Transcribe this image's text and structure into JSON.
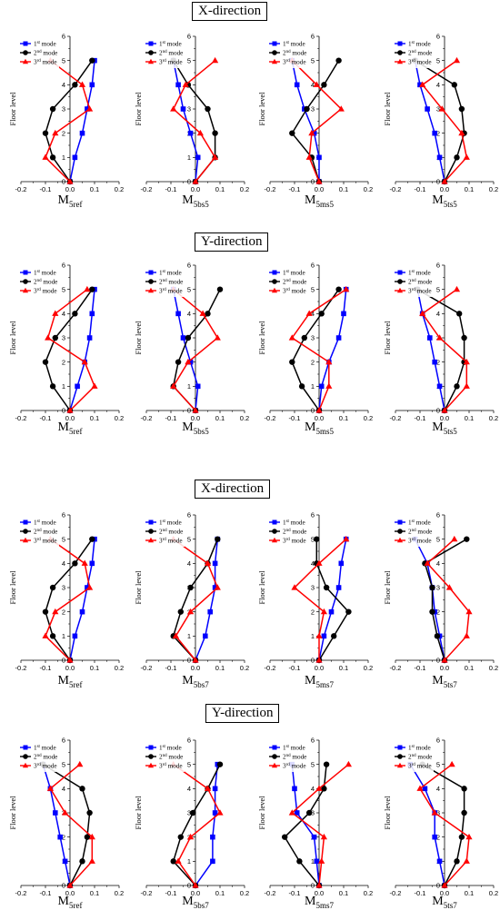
{
  "colors": {
    "mode1": "#0000ff",
    "mode2": "#000000",
    "mode3": "#ff0000"
  },
  "legend_labels": [
    {
      "base": "1",
      "sup": "st",
      "rest": " mode"
    },
    {
      "base": "2",
      "sup": "nd",
      "rest": " mode"
    },
    {
      "base": "3",
      "sup": "rd",
      "rest": " mode"
    }
  ],
  "y_axis_label": "Floor level",
  "x_tick_labels": [
    "-0.2",
    "-0.1",
    "0.0",
    "0.1",
    "0.2"
  ],
  "y_tick_labels": [
    "0",
    "1",
    "2",
    "3",
    "4",
    "5",
    "6"
  ],
  "groups": [
    {
      "title": "X-direction"
    },
    {
      "title": "Y-direction"
    },
    {
      "title": "X-direction"
    },
    {
      "title": "Y-direction"
    }
  ],
  "chart_data": [
    {
      "type": "line",
      "group": 0,
      "label_main": "M",
      "label_sub": "5ref",
      "xlim": [
        -0.2,
        0.2
      ],
      "ylim": [
        0,
        6
      ],
      "y": [
        0,
        1,
        2,
        3,
        4,
        5
      ],
      "series": [
        {
          "name": "1st mode",
          "values": [
            0,
            0.02,
            0.05,
            0.07,
            0.09,
            0.1
          ]
        },
        {
          "name": "2nd mode",
          "values": [
            0,
            -0.07,
            -0.1,
            -0.07,
            0.02,
            0.09
          ]
        },
        {
          "name": "3rd mode",
          "values": [
            0,
            -0.1,
            -0.06,
            0.08,
            0.05,
            -0.08
          ]
        }
      ]
    },
    {
      "type": "line",
      "group": 0,
      "label_main": "M",
      "label_sub": "5bs5",
      "xlim": [
        -0.2,
        0.2
      ],
      "ylim": [
        0,
        6
      ],
      "y": [
        0,
        1,
        2,
        3,
        4,
        5
      ],
      "series": [
        {
          "name": "1st mode",
          "values": [
            0,
            0.01,
            -0.02,
            -0.05,
            -0.07,
            -0.09
          ]
        },
        {
          "name": "2nd mode",
          "values": [
            0,
            0.08,
            0.08,
            0.05,
            -0.03,
            -0.09
          ]
        },
        {
          "name": "3rd mode",
          "values": [
            0,
            0.08,
            0.02,
            -0.09,
            -0.04,
            0.08
          ]
        }
      ]
    },
    {
      "type": "line",
      "group": 0,
      "label_main": "M",
      "label_sub": "5ms5",
      "xlim": [
        -0.2,
        0.2
      ],
      "ylim": [
        0,
        6
      ],
      "y": [
        0,
        1,
        2,
        3,
        4,
        5
      ],
      "series": [
        {
          "name": "1st mode",
          "values": [
            0,
            0.0,
            -0.02,
            -0.06,
            -0.09,
            -0.11
          ]
        },
        {
          "name": "2nd mode",
          "values": [
            0,
            -0.03,
            -0.11,
            -0.05,
            0.02,
            0.08
          ]
        },
        {
          "name": "3rd mode",
          "values": [
            0,
            -0.04,
            -0.03,
            0.09,
            -0.01,
            -0.11
          ]
        }
      ]
    },
    {
      "type": "line",
      "group": 0,
      "label_main": "M",
      "label_sub": "5ts5",
      "xlim": [
        -0.2,
        0.2
      ],
      "ylim": [
        0,
        6
      ],
      "y": [
        0,
        1,
        2,
        3,
        4,
        5
      ],
      "series": [
        {
          "name": "1st mode",
          "values": [
            0,
            -0.02,
            -0.04,
            -0.07,
            -0.1,
            -0.12
          ]
        },
        {
          "name": "2nd mode",
          "values": [
            0,
            0.05,
            0.08,
            0.07,
            0.04,
            -0.12
          ]
        },
        {
          "name": "3rd mode",
          "values": [
            0,
            0.09,
            0.07,
            -0.01,
            -0.09,
            0.05
          ]
        }
      ]
    },
    {
      "type": "line",
      "group": 1,
      "label_main": "M",
      "label_sub": "5ref",
      "xlim": [
        -0.2,
        0.2
      ],
      "ylim": [
        0,
        6
      ],
      "y": [
        0,
        1,
        2,
        3,
        4,
        5
      ],
      "series": [
        {
          "name": "1st mode",
          "values": [
            0,
            0.03,
            0.06,
            0.08,
            0.09,
            0.1
          ]
        },
        {
          "name": "2nd mode",
          "values": [
            0,
            -0.07,
            -0.1,
            -0.06,
            0.02,
            0.09
          ]
        },
        {
          "name": "3rd mode",
          "values": [
            0,
            0.1,
            0.06,
            -0.09,
            -0.06,
            0.07
          ]
        }
      ]
    },
    {
      "type": "line",
      "group": 1,
      "label_main": "M",
      "label_sub": "5bs5",
      "xlim": [
        -0.2,
        0.2
      ],
      "ylim": [
        0,
        6
      ],
      "y": [
        0,
        1,
        2,
        3,
        4,
        5
      ],
      "series": [
        {
          "name": "1st mode",
          "values": [
            0,
            0.01,
            -0.02,
            -0.05,
            -0.07,
            -0.09
          ]
        },
        {
          "name": "2nd mode",
          "values": [
            0,
            -0.09,
            -0.07,
            -0.03,
            0.05,
            0.1
          ]
        },
        {
          "name": "3rd mode",
          "values": [
            0,
            -0.09,
            -0.03,
            0.09,
            0.03,
            -0.09
          ]
        }
      ]
    },
    {
      "type": "line",
      "group": 1,
      "label_main": "M",
      "label_sub": "5ms5",
      "xlim": [
        -0.2,
        0.2
      ],
      "ylim": [
        0,
        6
      ],
      "y": [
        0,
        1,
        2,
        3,
        4,
        5
      ],
      "series": [
        {
          "name": "1st mode",
          "values": [
            0,
            0.01,
            0.04,
            0.08,
            0.1,
            0.11
          ]
        },
        {
          "name": "2nd mode",
          "values": [
            0,
            -0.07,
            -0.11,
            -0.06,
            0.01,
            0.08
          ]
        },
        {
          "name": "3rd mode",
          "values": [
            0,
            0.04,
            0.04,
            -0.11,
            -0.04,
            0.11
          ]
        }
      ]
    },
    {
      "type": "line",
      "group": 1,
      "label_main": "M",
      "label_sub": "5ts5",
      "xlim": [
        -0.2,
        0.2
      ],
      "ylim": [
        0,
        6
      ],
      "y": [
        0,
        1,
        2,
        3,
        4,
        5
      ],
      "series": [
        {
          "name": "1st mode",
          "values": [
            0,
            -0.02,
            -0.04,
            -0.06,
            -0.09,
            -0.11
          ]
        },
        {
          "name": "2nd mode",
          "values": [
            0,
            0.05,
            0.08,
            0.08,
            0.06,
            -0.11
          ]
        },
        {
          "name": "3rd mode",
          "values": [
            0,
            0.09,
            0.09,
            -0.02,
            -0.09,
            0.05
          ]
        }
      ]
    },
    {
      "type": "line",
      "group": 2,
      "label_main": "M",
      "label_sub": "5ref",
      "xlim": [
        -0.2,
        0.2
      ],
      "ylim": [
        0,
        6
      ],
      "y": [
        0,
        1,
        2,
        3,
        4,
        5
      ],
      "series": [
        {
          "name": "1st mode",
          "values": [
            0,
            0.02,
            0.05,
            0.07,
            0.09,
            0.1
          ]
        },
        {
          "name": "2nd mode",
          "values": [
            0,
            -0.07,
            -0.1,
            -0.07,
            0.02,
            0.09
          ]
        },
        {
          "name": "3rd mode",
          "values": [
            0,
            -0.1,
            -0.06,
            0.08,
            0.06,
            -0.08
          ]
        }
      ]
    },
    {
      "type": "line",
      "group": 2,
      "label_main": "M",
      "label_sub": "5bs7",
      "xlim": [
        -0.2,
        0.2
      ],
      "ylim": [
        0,
        6
      ],
      "y": [
        0,
        1,
        2,
        3,
        4,
        5
      ],
      "series": [
        {
          "name": "1st mode",
          "values": [
            0,
            0.04,
            0.06,
            0.08,
            0.08,
            0.09
          ]
        },
        {
          "name": "2nd mode",
          "values": [
            0,
            -0.09,
            -0.06,
            -0.02,
            0.05,
            0.09
          ]
        },
        {
          "name": "3rd mode",
          "values": [
            0,
            -0.08,
            -0.02,
            0.09,
            0.05,
            -0.09
          ]
        }
      ]
    },
    {
      "type": "line",
      "group": 2,
      "label_main": "M",
      "label_sub": "5ms7",
      "xlim": [
        -0.2,
        0.2
      ],
      "ylim": [
        0,
        6
      ],
      "y": [
        0,
        1,
        2,
        3,
        4,
        5
      ],
      "series": [
        {
          "name": "1st mode",
          "values": [
            0,
            0.02,
            0.05,
            0.08,
            0.09,
            0.11
          ]
        },
        {
          "name": "2nd mode",
          "values": [
            0,
            0.06,
            0.12,
            0.03,
            -0.01,
            -0.01
          ]
        },
        {
          "name": "3rd mode",
          "values": [
            0,
            0.0,
            0.02,
            -0.1,
            0.0,
            0.11
          ]
        }
      ]
    },
    {
      "type": "line",
      "group": 2,
      "label_main": "M",
      "label_sub": "5ts7",
      "xlim": [
        -0.2,
        0.2
      ],
      "ylim": [
        0,
        6
      ],
      "y": [
        0,
        1,
        2,
        3,
        4,
        5
      ],
      "series": [
        {
          "name": "1st mode",
          "values": [
            0,
            -0.02,
            -0.04,
            -0.05,
            -0.07,
            -0.12
          ]
        },
        {
          "name": "2nd mode",
          "values": [
            0,
            -0.03,
            -0.05,
            -0.05,
            -0.08,
            0.09
          ]
        },
        {
          "name": "3rd mode",
          "values": [
            0,
            0.09,
            0.1,
            0.02,
            -0.07,
            0.04
          ]
        }
      ]
    },
    {
      "type": "line",
      "group": 3,
      "label_main": "M",
      "label_sub": "5ref",
      "xlim": [
        -0.2,
        0.2
      ],
      "ylim": [
        0,
        6
      ],
      "y": [
        0,
        1,
        2,
        3,
        4,
        5
      ],
      "series": [
        {
          "name": "1st mode",
          "values": [
            0,
            -0.02,
            -0.04,
            -0.06,
            -0.08,
            -0.11
          ]
        },
        {
          "name": "2nd mode",
          "values": [
            0,
            0.05,
            0.07,
            0.08,
            0.05,
            -0.11
          ]
        },
        {
          "name": "3rd mode",
          "values": [
            0,
            0.09,
            0.09,
            -0.02,
            -0.08,
            0.04
          ]
        }
      ]
    },
    {
      "type": "line",
      "group": 3,
      "label_main": "M",
      "label_sub": "5bs7",
      "xlim": [
        -0.2,
        0.2
      ],
      "ylim": [
        0,
        6
      ],
      "y": [
        0,
        1,
        2,
        3,
        4,
        5
      ],
      "series": [
        {
          "name": "1st mode",
          "values": [
            0,
            0.07,
            0.07,
            0.08,
            0.08,
            0.09
          ]
        },
        {
          "name": "2nd mode",
          "values": [
            0,
            -0.09,
            -0.06,
            -0.01,
            0.05,
            0.1
          ]
        },
        {
          "name": "3rd mode",
          "values": [
            0,
            -0.07,
            -0.02,
            0.1,
            0.05,
            -0.09
          ]
        }
      ]
    },
    {
      "type": "line",
      "group": 3,
      "label_main": "M",
      "label_sub": "5ms7",
      "xlim": [
        -0.2,
        0.2
      ],
      "ylim": [
        0,
        6
      ],
      "y": [
        0,
        1,
        2,
        3,
        4,
        5
      ],
      "series": [
        {
          "name": "1st mode",
          "values": [
            0,
            -0.01,
            -0.02,
            -0.09,
            -0.1,
            -0.11
          ]
        },
        {
          "name": "2nd mode",
          "values": [
            0,
            -0.08,
            -0.14,
            -0.04,
            0.02,
            0.03
          ]
        },
        {
          "name": "3rd mode",
          "values": [
            0,
            0.01,
            0.02,
            -0.11,
            0.0,
            0.12
          ]
        }
      ]
    },
    {
      "type": "line",
      "group": 3,
      "label_main": "M",
      "label_sub": "5ts7",
      "xlim": [
        -0.2,
        0.2
      ],
      "ylim": [
        0,
        6
      ],
      "y": [
        0,
        1,
        2,
        3,
        4,
        5
      ],
      "series": [
        {
          "name": "1st mode",
          "values": [
            0,
            -0.02,
            -0.04,
            -0.04,
            -0.08,
            -0.14
          ]
        },
        {
          "name": "2nd mode",
          "values": [
            0,
            0.05,
            0.07,
            0.08,
            0.08,
            -0.09
          ]
        },
        {
          "name": "3rd mode",
          "values": [
            0,
            0.09,
            0.1,
            -0.04,
            -0.1,
            0.03
          ]
        }
      ]
    }
  ]
}
